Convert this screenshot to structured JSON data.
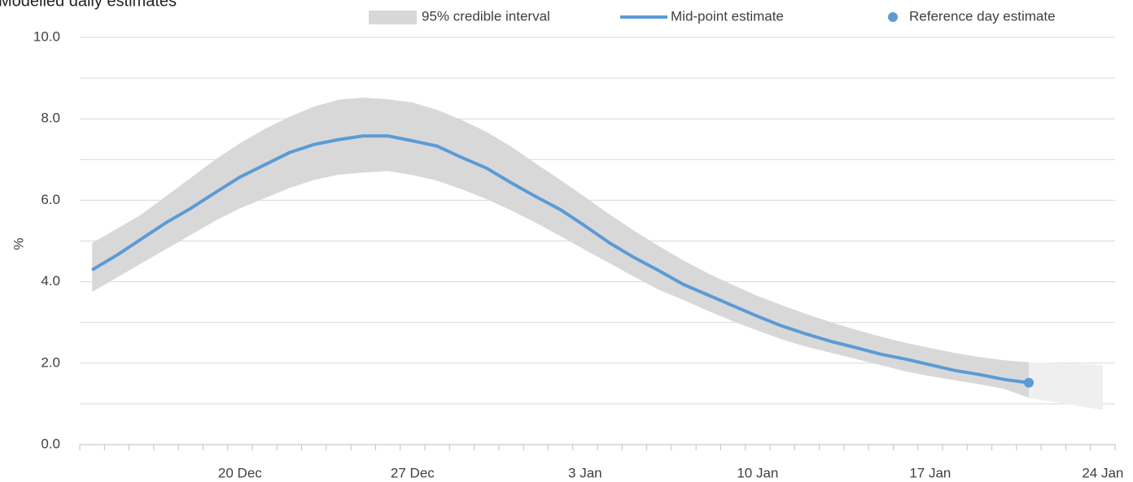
{
  "chart_data": {
    "type": "line",
    "title": "Modelled daily estimates",
    "ylabel": "%",
    "categories": [
      null,
      null,
      null,
      null,
      null,
      null,
      "20 Dec",
      null,
      null,
      null,
      null,
      null,
      null,
      "27 Dec",
      null,
      null,
      null,
      null,
      null,
      null,
      "3 Jan",
      null,
      null,
      null,
      null,
      null,
      null,
      "10 Jan",
      null,
      null,
      null,
      null,
      null,
      null,
      "17 Jan",
      null,
      null,
      null,
      null,
      null,
      null,
      "24 Jan"
    ],
    "ylim": [
      0,
      10
    ],
    "yticks": [
      {
        "value": 0,
        "label": "0.0"
      },
      {
        "value": 2,
        "label": "2.0"
      },
      {
        "value": 4,
        "label": "4.0"
      },
      {
        "value": 6,
        "label": "6.0"
      },
      {
        "value": 8,
        "label": "8.0"
      },
      {
        "value": 10,
        "label": "10.0"
      }
    ],
    "minor_yticks": [
      1,
      3,
      5,
      7,
      9
    ],
    "grid": true,
    "series": [
      {
        "name": "95% credible interval",
        "type": "band",
        "color": "#d9d8d9",
        "upper": [
          4.95,
          5.3,
          5.65,
          6.1,
          6.55,
          7.0,
          7.4,
          7.75,
          8.05,
          8.3,
          8.47,
          8.52,
          8.48,
          8.4,
          8.22,
          7.97,
          7.68,
          7.32,
          6.9,
          6.5,
          6.08,
          5.65,
          5.25,
          4.87,
          4.52,
          4.2,
          3.92,
          3.65,
          3.42,
          3.2,
          3.0,
          2.82,
          2.65,
          2.5,
          2.37,
          2.25,
          2.15,
          2.07,
          2.02,
          null,
          null,
          null
        ],
        "lower": [
          3.75,
          4.1,
          4.45,
          4.8,
          5.15,
          5.5,
          5.8,
          6.05,
          6.3,
          6.5,
          6.63,
          6.68,
          6.72,
          6.62,
          6.48,
          6.27,
          6.03,
          5.75,
          5.45,
          5.12,
          4.78,
          4.45,
          4.12,
          3.8,
          3.55,
          3.28,
          3.03,
          2.8,
          2.58,
          2.4,
          2.25,
          2.1,
          1.95,
          1.8,
          1.68,
          1.58,
          1.48,
          1.37,
          1.15,
          null,
          null,
          null
        ]
      },
      {
        "name": "Mid-point estimate",
        "type": "line",
        "color": "#5b9bd5",
        "values": [
          4.29,
          4.65,
          5.05,
          5.45,
          5.8,
          6.19,
          6.57,
          6.87,
          7.17,
          7.37,
          7.49,
          7.58,
          7.58,
          7.46,
          7.33,
          7.05,
          6.79,
          6.43,
          6.09,
          5.77,
          5.37,
          4.95,
          4.59,
          4.27,
          3.93,
          3.67,
          3.41,
          3.15,
          2.91,
          2.71,
          2.53,
          2.38,
          2.22,
          2.1,
          1.96,
          1.82,
          1.72,
          1.6,
          1.52,
          null,
          null,
          null
        ]
      },
      {
        "name": "Reference day estimate",
        "type": "point",
        "color": "#5b9bd5",
        "values": [
          null,
          null,
          null,
          null,
          null,
          null,
          null,
          null,
          null,
          null,
          null,
          null,
          null,
          null,
          null,
          null,
          null,
          null,
          null,
          null,
          null,
          null,
          null,
          null,
          null,
          null,
          null,
          null,
          null,
          null,
          null,
          null,
          null,
          null,
          null,
          null,
          null,
          null,
          1.52,
          null,
          null,
          null
        ]
      }
    ],
    "projection_band": {
      "color": "#efefef",
      "upper": [
        null,
        null,
        null,
        null,
        null,
        null,
        null,
        null,
        null,
        null,
        null,
        null,
        null,
        null,
        null,
        null,
        null,
        null,
        null,
        null,
        null,
        null,
        null,
        null,
        null,
        null,
        null,
        null,
        null,
        null,
        null,
        null,
        null,
        null,
        null,
        null,
        null,
        null,
        2.02,
        2.0,
        1.98,
        1.95
      ],
      "lower": [
        null,
        null,
        null,
        null,
        null,
        null,
        null,
        null,
        null,
        null,
        null,
        null,
        null,
        null,
        null,
        null,
        null,
        null,
        null,
        null,
        null,
        null,
        null,
        null,
        null,
        null,
        null,
        null,
        null,
        null,
        null,
        null,
        null,
        null,
        null,
        null,
        null,
        null,
        1.15,
        1.05,
        0.95,
        0.85
      ]
    }
  }
}
